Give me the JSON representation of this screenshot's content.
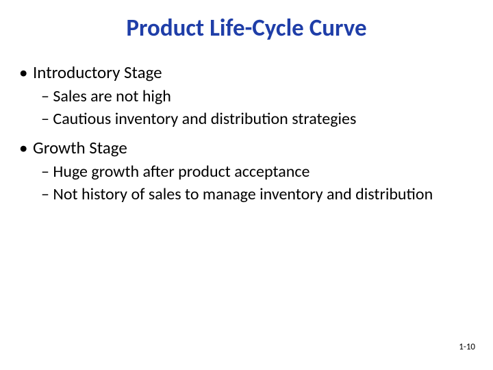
{
  "slide": {
    "title": "Product Life-Cycle Curve",
    "title_color": "#1f3ea8",
    "title_fontsize": 35,
    "body_color": "#000000",
    "bullet1_fontsize": 25,
    "dash_fontsize": 24,
    "background_color": "#ffffff",
    "sections": [
      {
        "heading": "Introductory Stage",
        "items": [
          "Sales are not high",
          "Cautious inventory and distribution strategies"
        ]
      },
      {
        "heading": "Growth Stage",
        "items": [
          "Huge growth after product acceptance",
          "Not history of sales to manage inventory and distribution"
        ]
      }
    ],
    "page_number": "1-10"
  }
}
